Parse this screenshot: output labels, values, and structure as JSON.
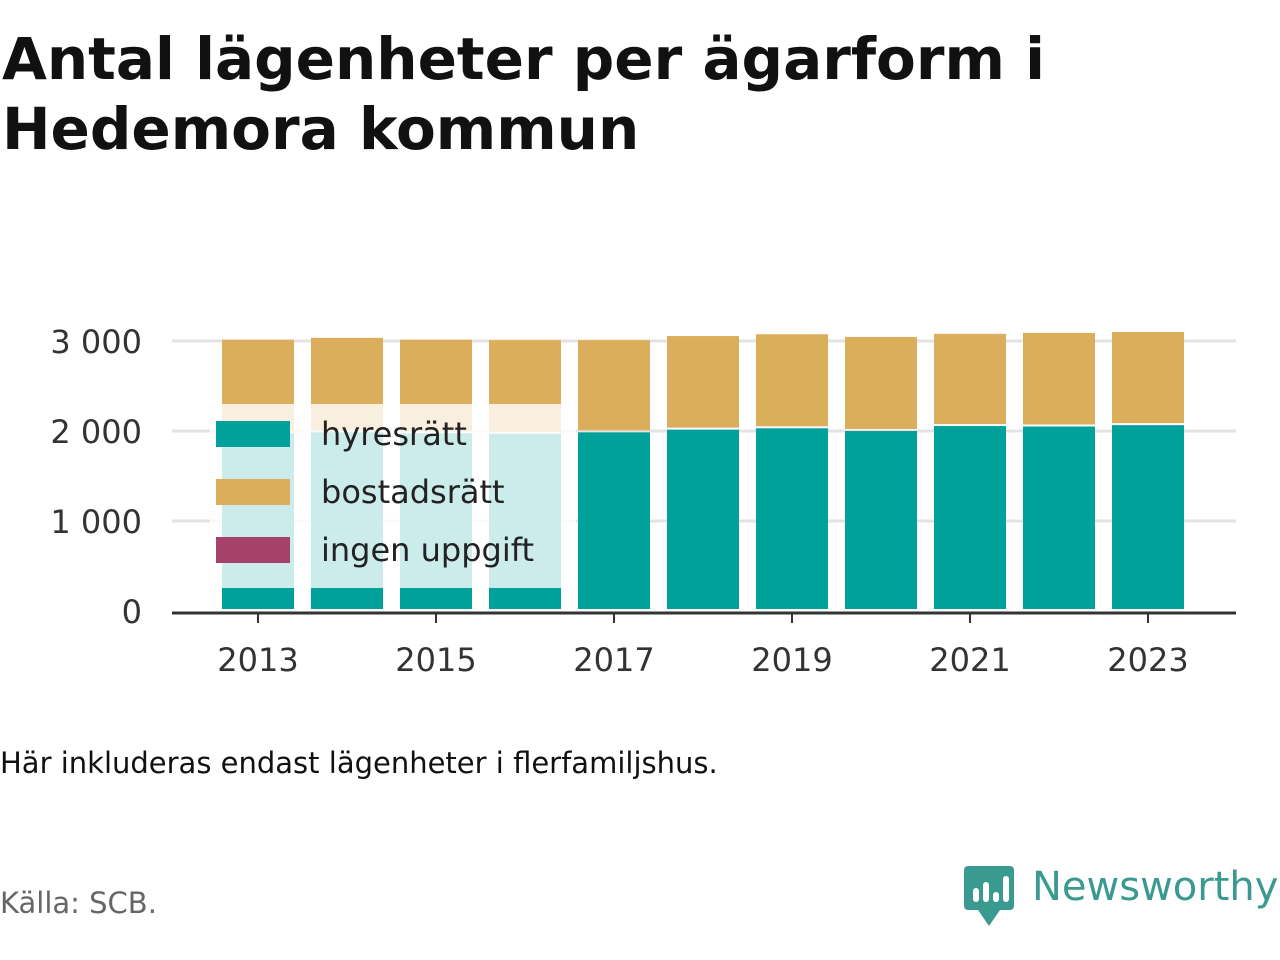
{
  "title": "Antal lägenheter per ägarform i Hedemora kommun",
  "note": "Här inkluderas endast lägenheter i flerfamiljshus.",
  "source": "Källa: SCB.",
  "brand": {
    "name": "Newsworthy",
    "icon": "newsworthy-logo-icon",
    "color": "#3a9a8f"
  },
  "chart_data": {
    "type": "bar",
    "stacked": true,
    "categories": [
      2013,
      2014,
      2015,
      2016,
      2017,
      2018,
      2019,
      2020,
      2021,
      2022,
      2023
    ],
    "series": [
      {
        "name": "hyresrätt",
        "color": "#00a19a",
        "values": [
          1975,
          1985,
          1975,
          1970,
          1985,
          2015,
          2030,
          2000,
          2055,
          2050,
          2065
        ]
      },
      {
        "name": "bostadsrätt",
        "color": "#dbae5c",
        "values": [
          1040,
          1050,
          1040,
          1040,
          1025,
          1040,
          1045,
          1045,
          1025,
          1040,
          1035
        ]
      },
      {
        "name": "ingen uppgift",
        "color": "#a6416a",
        "values": [
          0,
          0,
          0,
          0,
          0,
          0,
          0,
          0,
          0,
          0,
          0
        ]
      }
    ],
    "ylim": [
      0,
      3000
    ],
    "yticks": [
      0,
      1000,
      2000,
      3000
    ],
    "ytick_labels": [
      "0",
      "1 000",
      "2 000",
      "3 000"
    ],
    "xticks": [
      2013,
      2015,
      2017,
      2019,
      2021,
      2023
    ],
    "xtick_labels": [
      "2013",
      "2015",
      "2017",
      "2019",
      "2021",
      "2023"
    ],
    "grid": true,
    "legend_position": "inside-left"
  }
}
